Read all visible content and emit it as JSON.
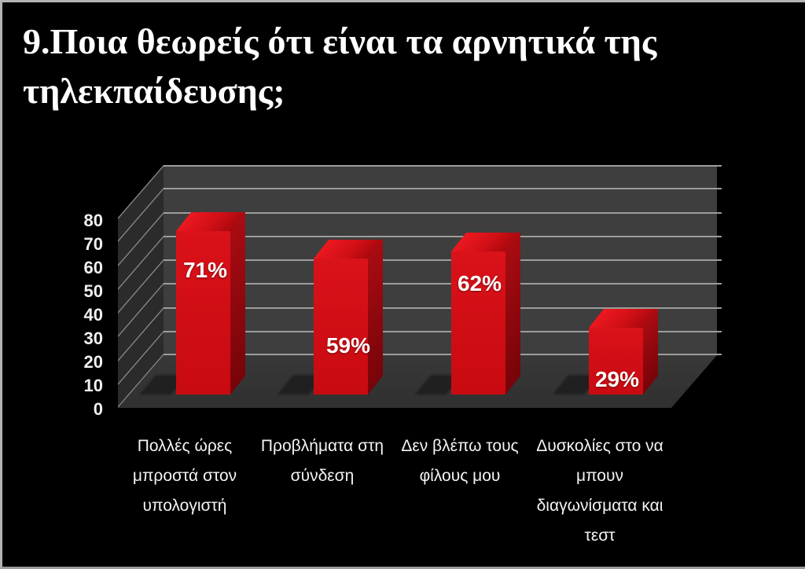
{
  "title": "9.Ποια θεωρείς ότι είναι τα αρνητικά της\nτηλεκπαίδευσης;",
  "chart_data": {
    "type": "bar",
    "projection": "3d-column",
    "title": "9.Ποια θεωρείς ότι είναι τα αρνητικά της τηλεκπαίδευσης;",
    "categories": [
      "Πολλές ώρες\nμπροστά στον\nυπολογιστή",
      "Προβλήματα στη\nσύνδεση",
      "Δεν βλέπω τους\nφίλους μου",
      "Δυσκολίες στο να\nμπουν\nδιαγωνίσματα και\nτεστ"
    ],
    "values": [
      71,
      59,
      62,
      29
    ],
    "data_labels": [
      "71%",
      "59%",
      "62%",
      "29%"
    ],
    "xlabel": "",
    "ylabel": "",
    "ylim": [
      0,
      80
    ],
    "ytick_step": 10,
    "yticks": [
      0,
      10,
      20,
      30,
      40,
      50,
      60,
      70,
      80
    ],
    "grid": true,
    "legend": false,
    "colors": {
      "background": "#000000",
      "bar_front": "#d00d14",
      "bar_side": "#8c070d",
      "bar_top": "#d11016",
      "wall_back": "#3e3e3e",
      "wall_left": "#2b2b2b",
      "floor": "#343434",
      "gridline": "#9c9c9c",
      "text": "#f3f3f3",
      "data_label_text": "#ffffff"
    }
  }
}
